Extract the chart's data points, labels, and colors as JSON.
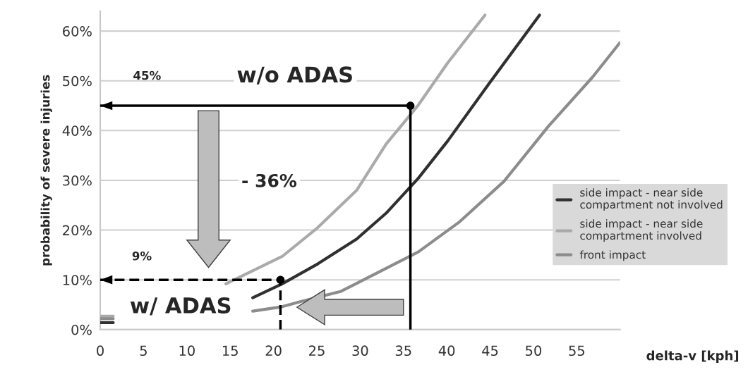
{
  "chart_data": {
    "type": "line",
    "xlabel": "delta-v [kph]",
    "ylabel": "probability of severe injuries",
    "xlim": [
      0,
      60
    ],
    "xticks": [
      0,
      5,
      10,
      15,
      20,
      25,
      30,
      35,
      40,
      45,
      50,
      55
    ],
    "ylim": [
      0,
      64
    ],
    "yticks": [
      {
        "value": 0,
        "label": "0%"
      },
      {
        "value": 10,
        "label": "10%"
      },
      {
        "value": 20,
        "label": "20%"
      },
      {
        "value": 30,
        "label": "30%"
      },
      {
        "value": 40,
        "label": "40%"
      },
      {
        "value": 50,
        "label": "50%"
      },
      {
        "value": 60,
        "label": "60%"
      }
    ],
    "grid": "y",
    "legend": "right",
    "series": [
      {
        "name": "side impact - near side compartment not involved",
        "color": "#303030",
        "x": [
          0,
          1.5,
          8,
          17.6,
          21,
          25.1,
          29.6,
          33,
          36.7,
          40.1,
          44.9,
          50.7
        ],
        "values": [
          1.4,
          1.4,
          null,
          6.4,
          9.2,
          13.2,
          18.2,
          23.4,
          30.4,
          37.9,
          49.5,
          63.2
        ]
      },
      {
        "name": "side impact - near side compartment involved",
        "color": "#aaaaaa",
        "x": [
          0,
          1.5,
          8,
          14.5,
          21,
          25.1,
          29.6,
          33,
          36.7,
          40.1,
          44.4
        ],
        "values": [
          2.7,
          2.7,
          null,
          9.2,
          14.7,
          20.5,
          28,
          37.3,
          45.1,
          53.6,
          63.2
        ]
      },
      {
        "name": "front impact",
        "color": "#8c8c8c",
        "x": [
          0,
          1.5,
          8,
          17.6,
          21,
          23.3,
          27.8,
          36.7,
          41.5,
          46.6,
          51.7,
          56.8,
          60
        ],
        "values": [
          2.2,
          2.2,
          null,
          3.7,
          4.6,
          5.7,
          7.7,
          15.6,
          21.7,
          29.8,
          40.8,
          50.7,
          57.7
        ]
      },
      {
        "type": "line",
        "color": "#000000",
        "line_style": "solid",
        "x": [
          35.8,
          35.8,
          0
        ],
        "values": [
          0,
          45,
          45
        ]
      },
      {
        "type": "line",
        "color": "#000000",
        "line_style": "dashed",
        "x": [
          20.8,
          20.8,
          0
        ],
        "values": [
          0,
          10,
          10
        ]
      },
      {
        "type": "scatter",
        "color": "#000000",
        "marker": "circle",
        "x": [
          35.8,
          20.8
        ],
        "values": [
          45,
          10
        ]
      }
    ],
    "annotations": [
      "45%",
      "w/o ADAS",
      "- 36%",
      "9%",
      "w/ ADAS"
    ]
  }
}
